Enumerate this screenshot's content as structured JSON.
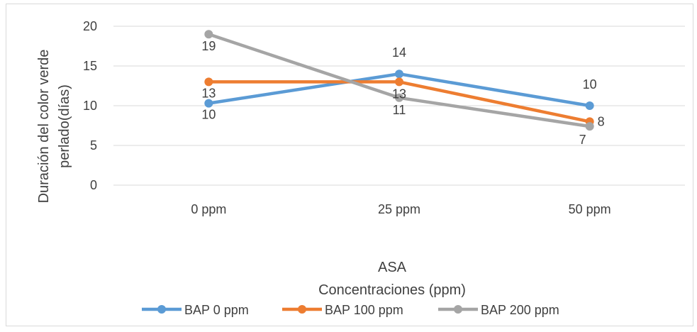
{
  "chart_data": {
    "type": "line",
    "categories": [
      "0 ppm",
      "25 ppm",
      "50 ppm"
    ],
    "ylabel_lines": [
      "Duración del color verde",
      "perlado(días)"
    ],
    "xlabel_lines": [
      "ASA",
      "Concentraciones (ppm)"
    ],
    "ylim": [
      0,
      20
    ],
    "yticks": [
      0,
      5,
      10,
      15,
      20
    ],
    "grid": true,
    "legend_position": "bottom",
    "series": [
      {
        "name": "BAP 0 ppm",
        "color": "#5b9bd5",
        "values": [
          10.3,
          14,
          10
        ],
        "labels": [
          "10",
          "14",
          "10"
        ]
      },
      {
        "name": "BAP 100 ppm",
        "color": "#ed7d31",
        "values": [
          13,
          13,
          8
        ],
        "labels": [
          "13",
          "13",
          "8"
        ]
      },
      {
        "name": "BAP 200 ppm",
        "color": "#a5a5a5",
        "values": [
          19,
          11,
          7.4
        ],
        "labels": [
          "19",
          "11",
          "7"
        ]
      }
    ]
  }
}
